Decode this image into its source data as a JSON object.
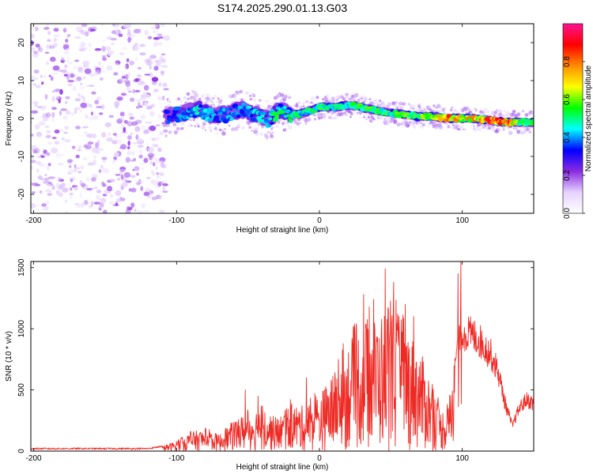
{
  "title": "S174.2025.290.01.13.G03",
  "chart_data": [
    {
      "type": "heatmap",
      "title": "S174.2025.290.01.13.G03",
      "xlabel": "Height of straight line (km)",
      "ylabel": "Frequency (Hz)",
      "xlim": [
        -202,
        150
      ],
      "ylim": [
        -25,
        25
      ],
      "xticks": [
        -200,
        -100,
        0,
        100
      ],
      "yticks": [
        -20,
        -10,
        0,
        10,
        20
      ],
      "colorbar": {
        "label": "Normalized spectral amplitude",
        "range": [
          0,
          1
        ],
        "ticks": [
          0.0,
          0.2,
          0.4,
          0.6,
          0.8
        ],
        "tick_labels": [
          "0.0",
          "0.2",
          "0.4",
          "0.6",
          "0.8"
        ],
        "colormap": [
          "#ffffff",
          "#e6d2ff",
          "#8a2be2",
          "#0000ff",
          "#00ffff",
          "#00ff00",
          "#ffff00",
          "#ff8c00",
          "#ff0000",
          "#ff1493"
        ]
      },
      "noise_region_x": [
        -202,
        -107
      ],
      "ridge": {
        "x": [
          -107,
          -95,
          -85,
          -75,
          -65,
          -55,
          -45,
          -35,
          -28,
          -20,
          -10,
          0,
          10,
          20,
          30,
          40,
          50,
          60,
          70,
          80,
          90,
          100,
          110,
          120,
          130,
          140,
          150
        ],
        "freq": [
          0.5,
          1.5,
          2.5,
          1.0,
          1.0,
          2.5,
          1.0,
          -0.5,
          2.5,
          1.0,
          1.5,
          3.0,
          3.0,
          3.5,
          3.0,
          2.0,
          1.5,
          1.0,
          0.5,
          0.5,
          0.0,
          0.0,
          0.0,
          -0.5,
          -1.0,
          -1.0,
          -1.0
        ],
        "amplitude": [
          0.35,
          0.4,
          0.45,
          0.4,
          0.4,
          0.4,
          0.45,
          0.45,
          0.55,
          0.5,
          0.5,
          0.55,
          0.55,
          0.5,
          0.55,
          0.55,
          0.55,
          0.6,
          0.6,
          0.65,
          0.85,
          0.7,
          0.75,
          0.85,
          0.9,
          0.6,
          0.55
        ]
      }
    },
    {
      "type": "line",
      "xlabel": "Height of straight line (km)",
      "ylabel": "SNR (10 * v/v)",
      "xlim": [
        -202,
        150
      ],
      "ylim": [
        0,
        1550
      ],
      "xticks": [
        -200,
        -100,
        0,
        100
      ],
      "yticks": [
        0,
        500,
        1000,
        1500
      ],
      "color": "#ee2a24",
      "series": [
        {
          "name": "SNR",
          "envelope_x": [
            -202,
            -180,
            -160,
            -140,
            -120,
            -110,
            -100,
            -90,
            -80,
            -70,
            -60,
            -50,
            -40,
            -30,
            -20,
            -10,
            0,
            10,
            20,
            30,
            40,
            50,
            60,
            70,
            80,
            85,
            90,
            95,
            100,
            110,
            120,
            125,
            130,
            135,
            140,
            145,
            150
          ],
          "envelope_y": [
            20,
            20,
            20,
            20,
            20,
            40,
            80,
            150,
            170,
            130,
            240,
            300,
            350,
            250,
            370,
            350,
            450,
            600,
            850,
            1000,
            1050,
            1150,
            1000,
            800,
            500,
            320,
            350,
            800,
            1050,
            1000,
            850,
            700,
            420,
            220,
            380,
            450,
            420
          ],
          "peaks": [
            {
              "x": 24,
              "y": 1020
            },
            {
              "x": 31,
              "y": 1280
            },
            {
              "x": 38,
              "y": 1240
            },
            {
              "x": 46,
              "y": 1490
            },
            {
              "x": 52,
              "y": 1380
            },
            {
              "x": 60,
              "y": 1200
            },
            {
              "x": 66,
              "y": 1100
            },
            {
              "x": 99,
              "y": 1550
            },
            {
              "x": 97,
              "y": 1450
            },
            {
              "x": -52,
              "y": 500
            },
            {
              "x": -43,
              "y": 450
            },
            {
              "x": -9,
              "y": 600
            }
          ]
        }
      ]
    }
  ]
}
